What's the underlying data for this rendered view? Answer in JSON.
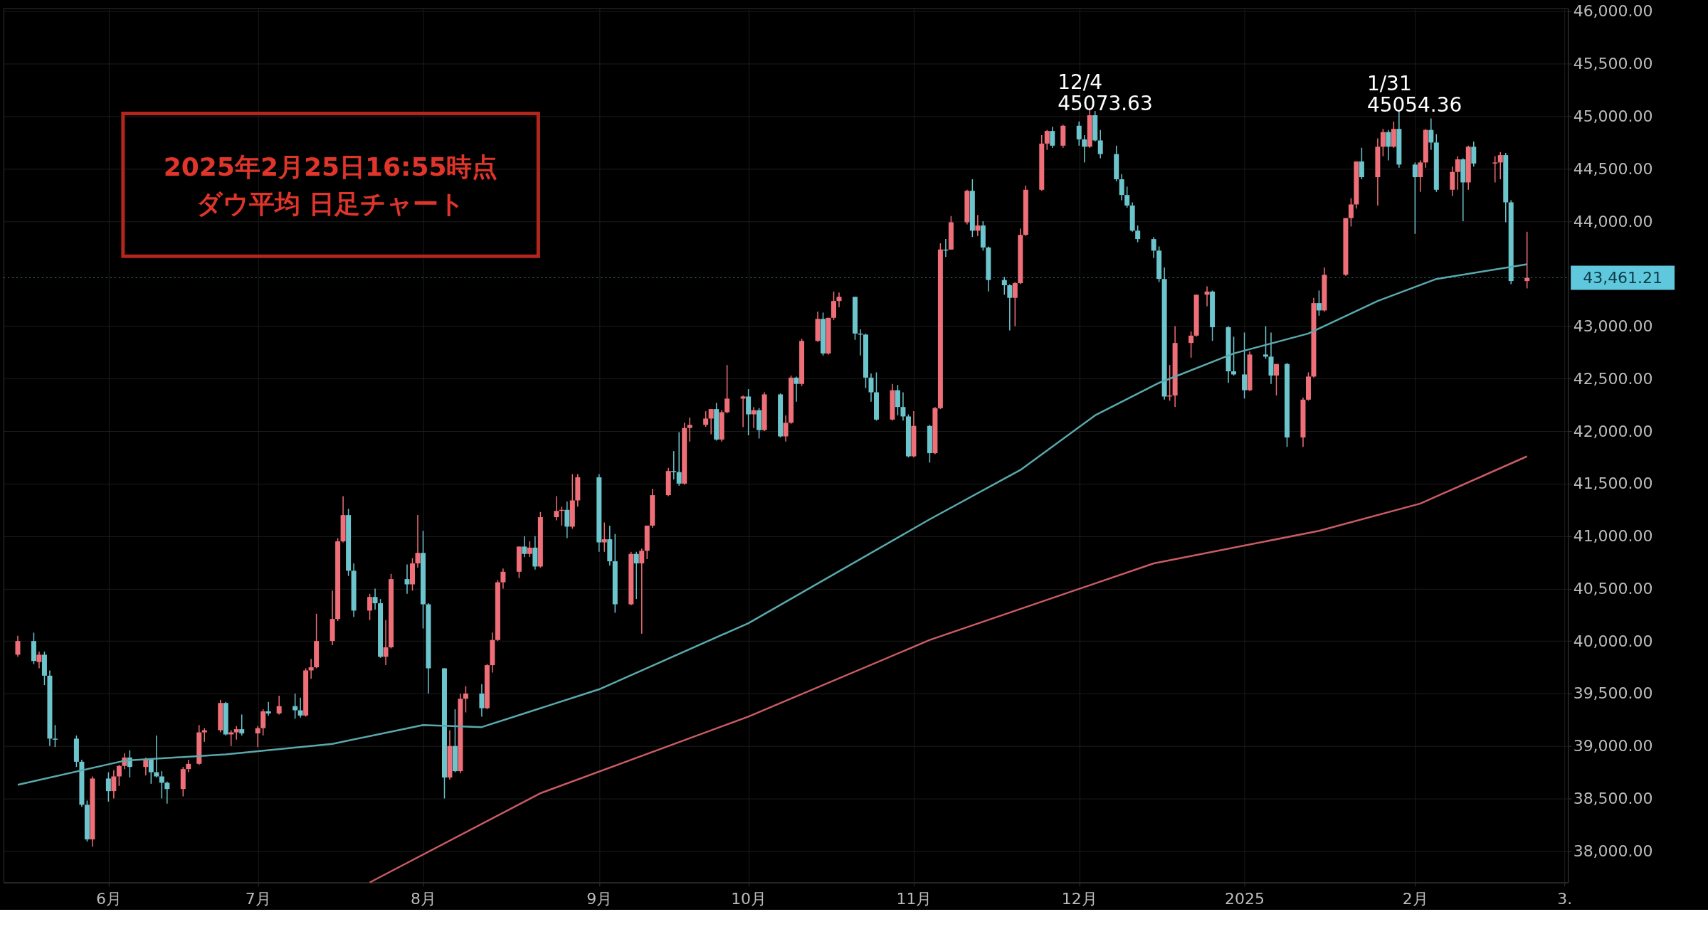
{
  "chart_data": {
    "type": "candlestick",
    "annotations": [
      {
        "text": "12/4\n45073.63",
        "x": "2024-12-04",
        "y": 45073.63
      },
      {
        "text": "1/31\n45054.36",
        "x": "2025-01-31",
        "y": 45054.36
      },
      "2025年2月25日16:55時点",
      "ダウ平均 日足チャート"
    ],
    "colors": [
      "#ef6f78",
      "#6cc4cc",
      "#ef6f78",
      "#6cc4cc",
      "#6cc4cc",
      "#6cc4cc",
      "#6cc4cc",
      "#6cc4cc",
      "#6cc4cc",
      "#ef6f78",
      "#6cc4cc",
      "#ef6f78",
      "#ef6f78",
      "#ef6f78",
      "#6cc4cc",
      "#ef6f78",
      "#6cc4cc",
      "#6cc4cc",
      "#6cc4cc",
      "#6cc4cc",
      "#ef6f78",
      "#ef6f78",
      "#ef6f78",
      "#ef6f78",
      "#ef6f78",
      "#6cc4cc",
      "#ef6f78",
      "#ef6f78",
      "#6cc4cc",
      "#ef6f78",
      "#ef6f78",
      "#6cc4cc",
      "#ef6f78",
      "#6cc4cc",
      "#6cc4cc",
      "#ef6f78",
      "#ef6f78",
      "#ef6f78",
      "#ef6f78",
      "#ef6f78",
      "#ef6f78",
      "#6cc4cc",
      "#6cc4cc",
      "#ef6f78",
      "#6cc4cc",
      "#6cc4cc",
      "#ef6f78",
      "#ef6f78",
      "#6cc4cc",
      "#ef6f78",
      "#ef6f78",
      "#6cc4cc",
      "#6cc4cc",
      "#6cc4cc",
      "#ef6f78",
      "#6cc4cc",
      "#ef6f78",
      "#ef6f78",
      "#6cc4cc",
      "#ef6f78",
      "#ef6f78",
      "#ef6f78",
      "#ef6f78",
      "#ef6f78",
      "#6cc4cc",
      "#ef6f78",
      "#6cc4cc",
      "#ef6f78",
      "#ef6f78",
      "#ef6f78",
      "#6cc4cc",
      "#ef6f78",
      "#ef6f78",
      "#6cc4cc",
      "#ef6f78",
      "#6cc4cc",
      "#6cc4cc",
      "#ef6f78",
      "#6cc4cc",
      "#ef6f78",
      "#ef6f78",
      "#ef6f78",
      "#ef6f78",
      "#6cc4cc",
      "#6cc4cc",
      "#ef6f78",
      "#ef6f78",
      "#ef6f78",
      "#ef6f78",
      "#6cc4cc",
      "#ef6f78",
      "#ef6f78",
      "#ef6f78",
      "#6cc4cc",
      "#ef6f78",
      "#6cc4cc",
      "#ef6f78",
      "#6cc4cc",
      "#ef6f78",
      "#ef6f78",
      "#6cc4cc",
      "#ef6f78",
      "#ef6f78",
      "#6cc4cc",
      "#ef6f78",
      "#ef6f78",
      "#ef6f78",
      "#6cc4cc",
      "#6cc4cc",
      "#6cc4cc",
      "#6cc4cc",
      "#6cc4cc",
      "#ef6f78",
      "#6cc4cc",
      "#6cc4cc",
      "#6cc4cc",
      "#ef6f78",
      "#6cc4cc",
      "#ef6f78",
      "#ef6f78",
      "#6cc4cc",
      "#ef6f78",
      "#ef6f78",
      "#6cc4cc",
      "#ef6f78",
      "#6cc4cc",
      "#6cc4cc",
      "#6cc4cc",
      "#6cc4cc",
      "#ef6f78",
      "#ef6f78",
      "#ef6f78",
      "#ef6f78",
      "#ef6f78",
      "#6cc4cc",
      "#ef6f78",
      "#6cc4cc",
      "#6cc4cc",
      "#ef6f78",
      "#6cc4cc",
      "#6cc4cc",
      "#6cc4cc",
      "#6cc4cc",
      "#6cc4cc",
      "#6cc4cc",
      "#6cc4cc",
      "#6cc4cc",
      "#6cc4cc",
      "#6cc4cc",
      "#ef6f78",
      "#ef6f78",
      "#ef6f78",
      "#ef6f78",
      "#ef6f78",
      "#6cc4cc",
      "#6cc4cc",
      "#6cc4cc",
      "#6cc4cc",
      "#ef6f78",
      "#6cc4cc",
      "#6cc4cc",
      "#ef6f78",
      "#6cc4cc",
      "#ef6f78",
      "#ef6f78",
      "#ef6f78",
      "#6cc4cc",
      "#ef6f78",
      "#ef6f78",
      "#ef6f78",
      "#ef6f78",
      "#6cc4cc",
      "#ef6f78",
      "#ef6f78",
      "#6cc4cc",
      "#ef6f78",
      "#6cc4cc",
      "#6cc4cc",
      "#ef6f78",
      "#ef6f78",
      "#6cc4cc",
      "#6cc4cc",
      "#ef6f78",
      "#ef6f78",
      "#6cc4cc",
      "#ef6f78",
      "#6cc4cc",
      "#ef6f78",
      "#ef6f78",
      "#6cc4cc",
      "#6cc4cc",
      "#ef6f78"
    ],
    "x": [
      "2024-05-17",
      "2024-05-20",
      "2024-05-21",
      "2024-05-22",
      "2024-05-23",
      "2024-05-24",
      "2024-05-28",
      "2024-05-29",
      "2024-05-30",
      "2024-05-31",
      "2024-06-03",
      "2024-06-04",
      "2024-06-05",
      "2024-06-06",
      "2024-06-07",
      "2024-06-10",
      "2024-06-11",
      "2024-06-12",
      "2024-06-13",
      "2024-06-14",
      "2024-06-17",
      "2024-06-18",
      "2024-06-20",
      "2024-06-21",
      "2024-06-24",
      "2024-06-25",
      "2024-06-26",
      "2024-06-27",
      "2024-06-28",
      "2024-07-01",
      "2024-07-02",
      "2024-07-03",
      "2024-07-05",
      "2024-07-08",
      "2024-07-09",
      "2024-07-10",
      "2024-07-11",
      "2024-07-12",
      "2024-07-15",
      "2024-07-16",
      "2024-07-17",
      "2024-07-18",
      "2024-07-19",
      "2024-07-22",
      "2024-07-23",
      "2024-07-24",
      "2024-07-25",
      "2024-07-26",
      "2024-07-29",
      "2024-07-30",
      "2024-07-31",
      "2024-08-01",
      "2024-08-02",
      "2024-08-05",
      "2024-08-06",
      "2024-08-07",
      "2024-08-08",
      "2024-08-09",
      "2024-08-12",
      "2024-08-13",
      "2024-08-14",
      "2024-08-15",
      "2024-08-16",
      "2024-08-19",
      "2024-08-20",
      "2024-08-21",
      "2024-08-22",
      "2024-08-23",
      "2024-08-26",
      "2024-08-27",
      "2024-08-28",
      "2024-08-29",
      "2024-08-30",
      "2024-09-03",
      "2024-09-04",
      "2024-09-05",
      "2024-09-06",
      "2024-09-09",
      "2024-09-10",
      "2024-09-11",
      "2024-09-12",
      "2024-09-13",
      "2024-09-16",
      "2024-09-17",
      "2024-09-18",
      "2024-09-19",
      "2024-09-20",
      "2024-09-23",
      "2024-09-24",
      "2024-09-25",
      "2024-09-26",
      "2024-09-27",
      "2024-09-30",
      "2024-10-01",
      "2024-10-02",
      "2024-10-03",
      "2024-10-04",
      "2024-10-07",
      "2024-10-08",
      "2024-10-09",
      "2024-10-10",
      "2024-10-11",
      "2024-10-14",
      "2024-10-15",
      "2024-10-16",
      "2024-10-17",
      "2024-10-18",
      "2024-10-21",
      "2024-10-22",
      "2024-10-23",
      "2024-10-24",
      "2024-10-25",
      "2024-10-28",
      "2024-10-29",
      "2024-10-30",
      "2024-10-31",
      "2024-11-01",
      "2024-11-04",
      "2024-11-05",
      "2024-11-06",
      "2024-11-07",
      "2024-11-08",
      "2024-11-11",
      "2024-11-12",
      "2024-11-13",
      "2024-11-14",
      "2024-11-15",
      "2024-11-18",
      "2024-11-19",
      "2024-11-20",
      "2024-11-21",
      "2024-11-22",
      "2024-11-25",
      "2024-11-26",
      "2024-11-27",
      "2024-11-29",
      "2024-12-02",
      "2024-12-03",
      "2024-12-04",
      "2024-12-05",
      "2024-12-06",
      "2024-12-09",
      "2024-12-10",
      "2024-12-11",
      "2024-12-12",
      "2024-12-13",
      "2024-12-16",
      "2024-12-17",
      "2024-12-18",
      "2024-12-19",
      "2024-12-20",
      "2024-12-23",
      "2024-12-24",
      "2024-12-26",
      "2024-12-27",
      "2024-12-30",
      "2024-12-31",
      "2025-01-02",
      "2025-01-03",
      "2025-01-06",
      "2025-01-07",
      "2025-01-08",
      "2025-01-10",
      "2025-01-13",
      "2025-01-14",
      "2025-01-15",
      "2025-01-16",
      "2025-01-17",
      "2025-01-21",
      "2025-01-22",
      "2025-01-23",
      "2025-01-24",
      "2025-01-27",
      "2025-01-28",
      "2025-01-29",
      "2025-01-30",
      "2025-01-31",
      "2025-02-03",
      "2025-02-04",
      "2025-02-05",
      "2025-02-06",
      "2025-02-07",
      "2025-02-10",
      "2025-02-11",
      "2025-02-12",
      "2025-02-13",
      "2025-02-14",
      "2025-02-18",
      "2025-02-19",
      "2025-02-20",
      "2025-02-21",
      "2025-02-24"
    ],
    "ohlc": [
      [
        39870,
        40050,
        39850,
        40000
      ],
      [
        40000,
        40080,
        39780,
        39810
      ],
      [
        39800,
        39900,
        39740,
        39870
      ],
      [
        39870,
        39900,
        39580,
        39670
      ],
      [
        39670,
        39720,
        39000,
        39070
      ],
      [
        39070,
        39200,
        38990,
        39060
      ],
      [
        39070,
        39100,
        38800,
        38850
      ],
      [
        38850,
        38870,
        38420,
        38440
      ],
      [
        38440,
        38480,
        38090,
        38110
      ],
      [
        38110,
        38710,
        38040,
        38690
      ],
      [
        38690,
        38750,
        38470,
        38570
      ],
      [
        38570,
        38770,
        38500,
        38710
      ],
      [
        38710,
        38820,
        38620,
        38810
      ],
      [
        38810,
        38930,
        38780,
        38890
      ],
      [
        38890,
        38960,
        38700,
        38800
      ],
      [
        38800,
        38890,
        38720,
        38870
      ],
      [
        38870,
        38880,
        38640,
        38750
      ],
      [
        38750,
        39100,
        38700,
        38710
      ],
      [
        38710,
        38760,
        38500,
        38650
      ],
      [
        38650,
        38660,
        38450,
        38590
      ],
      [
        38590,
        38800,
        38520,
        38780
      ],
      [
        38780,
        38870,
        38750,
        38830
      ],
      [
        38830,
        39200,
        38820,
        39130
      ],
      [
        39130,
        39170,
        39040,
        39150
      ],
      [
        39150,
        39440,
        39130,
        39410
      ],
      [
        39410,
        39420,
        39100,
        39110
      ],
      [
        39110,
        39150,
        39000,
        39130
      ],
      [
        39130,
        39190,
        39060,
        39160
      ],
      [
        39160,
        39300,
        39100,
        39120
      ],
      [
        39120,
        39190,
        38990,
        39170
      ],
      [
        39170,
        39350,
        39100,
        39330
      ],
      [
        39330,
        39420,
        39290,
        39310
      ],
      [
        39310,
        39480,
        39300,
        39380
      ],
      [
        39380,
        39500,
        39260,
        39340
      ],
      [
        39340,
        39460,
        39270,
        39290
      ],
      [
        39290,
        39740,
        39280,
        39720
      ],
      [
        39720,
        39830,
        39640,
        39750
      ],
      [
        39750,
        40260,
        39740,
        40000
      ],
      [
        40000,
        40480,
        39960,
        40210
      ],
      [
        40210,
        40980,
        40190,
        40950
      ],
      [
        40950,
        41380,
        40940,
        41200
      ],
      [
        41200,
        41260,
        40620,
        40670
      ],
      [
        40670,
        40740,
        40230,
        40290
      ],
      [
        40290,
        40450,
        40200,
        40420
      ],
      [
        40420,
        40500,
        40300,
        40360
      ],
      [
        40360,
        40400,
        39840,
        39850
      ],
      [
        39850,
        40200,
        39770,
        39940
      ],
      [
        39940,
        40640,
        39930,
        40590
      ],
      [
        40590,
        40730,
        40450,
        40540
      ],
      [
        40540,
        40790,
        40480,
        40740
      ],
      [
        40740,
        41200,
        40700,
        40840
      ],
      [
        40840,
        41050,
        40120,
        40350
      ],
      [
        40350,
        40360,
        39500,
        39740
      ],
      [
        39740,
        39740,
        38500,
        38700
      ],
      [
        38700,
        39150,
        38680,
        39000
      ],
      [
        39000,
        39350,
        38750,
        38760
      ],
      [
        38760,
        39500,
        38740,
        39450
      ],
      [
        39450,
        39570,
        39320,
        39500
      ],
      [
        39500,
        39590,
        39280,
        39360
      ],
      [
        39360,
        39780,
        39350,
        39770
      ],
      [
        39770,
        40080,
        39700,
        40010
      ],
      [
        40010,
        40580,
        40000,
        40560
      ],
      [
        40560,
        40690,
        40500,
        40660
      ],
      [
        40660,
        40900,
        40600,
        40900
      ],
      [
        40900,
        41000,
        40800,
        40830
      ],
      [
        40830,
        40950,
        40800,
        40890
      ],
      [
        40890,
        41000,
        40680,
        40710
      ],
      [
        40710,
        41230,
        40700,
        41180
      ],
      [
        41180,
        41380,
        41150,
        41240
      ],
      [
        41240,
        41280,
        41100,
        41250
      ],
      [
        41250,
        41330,
        40980,
        41090
      ],
      [
        41090,
        41590,
        41070,
        41340
      ],
      [
        41340,
        41590,
        41280,
        41560
      ],
      [
        41560,
        41590,
        40850,
        40940
      ],
      [
        40940,
        41130,
        40850,
        40970
      ],
      [
        40970,
        41100,
        40720,
        40760
      ],
      [
        40760,
        41020,
        40270,
        40350
      ],
      [
        40350,
        40850,
        40340,
        40830
      ],
      [
        40830,
        40850,
        40400,
        40740
      ],
      [
        40740,
        40880,
        40070,
        40860
      ],
      [
        40860,
        41100,
        40780,
        41100
      ],
      [
        41100,
        41450,
        41080,
        41390
      ],
      [
        41390,
        41650,
        41380,
        41620
      ],
      [
        41620,
        41810,
        41540,
        41610
      ],
      [
        41610,
        41990,
        41480,
        41500
      ],
      [
        41500,
        42080,
        41490,
        42030
      ],
      [
        42030,
        42130,
        41900,
        42060
      ],
      [
        42060,
        42190,
        42040,
        42120
      ],
      [
        42120,
        42210,
        41970,
        42210
      ],
      [
        42210,
        42270,
        41910,
        41920
      ],
      [
        41920,
        42200,
        41900,
        42180
      ],
      [
        42180,
        42630,
        42170,
        42310
      ],
      [
        42310,
        42340,
        42040,
        42330
      ],
      [
        42330,
        42400,
        41960,
        42160
      ],
      [
        42160,
        42230,
        42030,
        42200
      ],
      [
        42200,
        42220,
        41930,
        42010
      ],
      [
        42010,
        42370,
        42000,
        42350
      ],
      [
        42350,
        42360,
        41940,
        41950
      ],
      [
        41950,
        42150,
        41900,
        42080
      ],
      [
        42080,
        42530,
        42070,
        42510
      ],
      [
        42510,
        42520,
        42280,
        42450
      ],
      [
        42450,
        42880,
        42430,
        42860
      ],
      [
        42860,
        43140,
        42850,
        43070
      ],
      [
        43070,
        43130,
        42720,
        42740
      ],
      [
        42740,
        43080,
        42730,
        43080
      ],
      [
        43080,
        43330,
        43060,
        43240
      ],
      [
        43240,
        43320,
        43180,
        43280
      ],
      [
        43280,
        43280,
        42870,
        42930
      ],
      [
        42930,
        42970,
        42720,
        42920
      ],
      [
        42920,
        42930,
        42410,
        42510
      ],
      [
        42510,
        42550,
        42280,
        42370
      ],
      [
        42370,
        42560,
        42100,
        42110
      ],
      [
        42110,
        42450,
        42100,
        42390
      ],
      [
        42390,
        42440,
        42150,
        42230
      ],
      [
        42230,
        42370,
        42100,
        42140
      ],
      [
        42140,
        42160,
        41750,
        41760
      ],
      [
        41760,
        42190,
        41750,
        42050
      ],
      [
        42050,
        42060,
        41700,
        41790
      ],
      [
        41790,
        42230,
        41780,
        42220
      ],
      [
        42220,
        43790,
        42210,
        43730
      ],
      [
        43730,
        43830,
        43660,
        43720
      ],
      [
        43730,
        44050,
        43730,
        43990
      ],
      [
        43990,
        44300,
        43970,
        44290
      ],
      [
        44290,
        44400,
        43850,
        43910
      ],
      [
        43910,
        44060,
        43860,
        43960
      ],
      [
        43960,
        44000,
        43720,
        43750
      ],
      [
        43750,
        43760,
        43330,
        43440
      ],
      [
        43440,
        43470,
        43300,
        43390
      ],
      [
        43390,
        43400,
        42960,
        43270
      ],
      [
        43270,
        43420,
        43000,
        43410
      ],
      [
        43410,
        43930,
        43400,
        43870
      ],
      [
        43870,
        44340,
        43860,
        44300
      ],
      [
        44300,
        44820,
        44290,
        44740
      ],
      [
        44740,
        44870,
        44680,
        44860
      ],
      [
        44860,
        44900,
        44700,
        44720
      ],
      [
        44720,
        44920,
        44700,
        44910
      ],
      [
        44910,
        44950,
        44720,
        44780
      ],
      [
        44780,
        44820,
        44560,
        44710
      ],
      [
        44710,
        45073.63,
        44700,
        45010
      ],
      [
        45010,
        45050,
        44760,
        44770
      ],
      [
        44770,
        44870,
        44600,
        44640
      ],
      [
        44640,
        44720,
        44380,
        44400
      ],
      [
        44400,
        44450,
        44200,
        44250
      ],
      [
        44250,
        44330,
        44130,
        44150
      ],
      [
        44150,
        44180,
        43900,
        43910
      ],
      [
        43910,
        43960,
        43800,
        43830
      ],
      [
        43830,
        43850,
        43650,
        43720
      ],
      [
        43720,
        43760,
        43420,
        43450
      ],
      [
        43450,
        43560,
        42300,
        42330
      ],
      [
        42330,
        42630,
        42290,
        42340
      ],
      [
        42340,
        43000,
        42230,
        42840
      ],
      [
        42840,
        42950,
        42700,
        42910
      ],
      [
        42910,
        43300,
        42900,
        43300
      ],
      [
        43300,
        43380,
        43190,
        43330
      ],
      [
        43330,
        43340,
        42860,
        42990
      ],
      [
        42990,
        43000,
        42460,
        42570
      ],
      [
        42570,
        42900,
        42530,
        42540
      ],
      [
        42540,
        42940,
        42310,
        42390
      ],
      [
        42390,
        42760,
        42380,
        42730
      ],
      [
        42730,
        43000,
        42690,
        42710
      ],
      [
        42710,
        42940,
        42450,
        42530
      ],
      [
        42530,
        42640,
        42340,
        42640
      ],
      [
        42640,
        42650,
        41850,
        41940
      ],
      [
        41940,
        42320,
        41850,
        42300
      ],
      [
        42300,
        42560,
        42290,
        42520
      ],
      [
        42520,
        43270,
        42510,
        43220
      ],
      [
        43220,
        43340,
        43100,
        43150
      ],
      [
        43150,
        43560,
        43140,
        43490
      ],
      [
        43490,
        44030,
        43480,
        44030
      ],
      [
        44030,
        44220,
        43950,
        44160
      ],
      [
        44160,
        44570,
        44120,
        44570
      ],
      [
        44570,
        44700,
        44400,
        44420
      ],
      [
        44420,
        44790,
        44150,
        44710
      ],
      [
        44710,
        44880,
        44620,
        44850
      ],
      [
        44850,
        44870,
        44580,
        44710
      ],
      [
        44710,
        44950,
        44700,
        44880
      ],
      [
        44880,
        45054.36,
        44510,
        44540
      ],
      [
        44540,
        44560,
        43880,
        44420
      ],
      [
        44420,
        44580,
        44280,
        44560
      ],
      [
        44560,
        44880,
        44510,
        44870
      ],
      [
        44870,
        44980,
        44680,
        44750
      ],
      [
        44750,
        44830,
        44280,
        44300
      ],
      [
        44300,
        44520,
        44240,
        44470
      ],
      [
        44470,
        44620,
        44300,
        44590
      ],
      [
        44590,
        44600,
        44000,
        44370
      ],
      [
        44370,
        44720,
        44300,
        44710
      ],
      [
        44710,
        44760,
        44520,
        44550
      ],
      [
        44550,
        44620,
        44370,
        44560
      ],
      [
        44560,
        44660,
        44400,
        44630
      ],
      [
        44630,
        44650,
        43990,
        44180
      ],
      [
        44180,
        44200,
        43400,
        43430
      ],
      [
        43430,
        43900,
        43360,
        43461.21
      ]
    ],
    "series": [
      {
        "type": "line",
        "color": "#5aa9ad",
        "x": [
          "2024-05-17",
          "2024-06-06",
          "2024-06-25",
          "2024-07-15",
          "2024-08-01",
          "2024-08-12",
          "2024-09-03",
          "2024-10-01",
          "2024-11-04",
          "2024-11-21",
          "2024-12-05",
          "2024-12-17",
          "2024-12-31",
          "2025-01-14",
          "2025-01-27",
          "2025-02-07",
          "2025-02-24"
        ],
        "values": [
          38630,
          38860,
          38920,
          39020,
          39200,
          39180,
          39540,
          40170,
          41160,
          41630,
          42150,
          42460,
          42740,
          42930,
          43240,
          43450,
          43590
        ]
      },
      {
        "type": "line",
        "color": "#c95c63",
        "x": [
          "2024-07-22",
          "2024-08-23",
          "2024-10-01",
          "2024-11-04",
          "2024-12-16",
          "2025-01-16",
          "2025-02-04",
          "2025-02-24"
        ],
        "values": [
          37700,
          38550,
          39280,
          40010,
          40740,
          41050,
          41310,
          41760
        ]
      }
    ],
    "ref_lines": [
      {
        "axis": "y",
        "value": 43461.21,
        "label": "43,461.21",
        "color": "#5fc8dc",
        "line_style": "dotted"
      }
    ],
    "xlim": [
      "2024-05-15",
      "2025-03-03"
    ],
    "xticks": [
      {
        "value": "2024-06-03",
        "label": "6月"
      },
      {
        "value": "2024-07-01",
        "label": "7月"
      },
      {
        "value": "2024-08-01",
        "label": "8月"
      },
      {
        "value": "2024-09-03",
        "label": "9月"
      },
      {
        "value": "2024-10-01",
        "label": "10月"
      },
      {
        "value": "2024-11-01",
        "label": "11月"
      },
      {
        "value": "2024-12-02",
        "label": "12月"
      },
      {
        "value": "2025-01-02",
        "label": "2025"
      },
      {
        "value": "2025-02-03",
        "label": "2月"
      },
      {
        "value": "2025-03-03",
        "label": "3."
      }
    ],
    "ylim": [
      37700,
      46030
    ],
    "yticks": [
      {
        "value": 38000,
        "label": "38,000.00"
      },
      {
        "value": 38500,
        "label": "38,500.00"
      },
      {
        "value": 39000,
        "label": "39,000.00"
      },
      {
        "value": 39500,
        "label": "39,500.00"
      },
      {
        "value": 40000,
        "label": "40,000.00"
      },
      {
        "value": 40500,
        "label": "40,500.00"
      },
      {
        "value": 41000,
        "label": "41,000.00"
      },
      {
        "value": 41500,
        "label": "41,500.00"
      },
      {
        "value": 42000,
        "label": "42,000.00"
      },
      {
        "value": 42500,
        "label": "42,500.00"
      },
      {
        "value": 43000,
        "label": "43,000.00"
      },
      {
        "value": 44000,
        "label": "44,000.00"
      },
      {
        "value": 44500,
        "label": "44,500.00"
      },
      {
        "value": 45000,
        "label": "45,000.00"
      },
      {
        "value": 45500,
        "label": "45,500.00"
      },
      {
        "value": 46000,
        "label": "46,000.00"
      }
    ],
    "grid": true
  }
}
